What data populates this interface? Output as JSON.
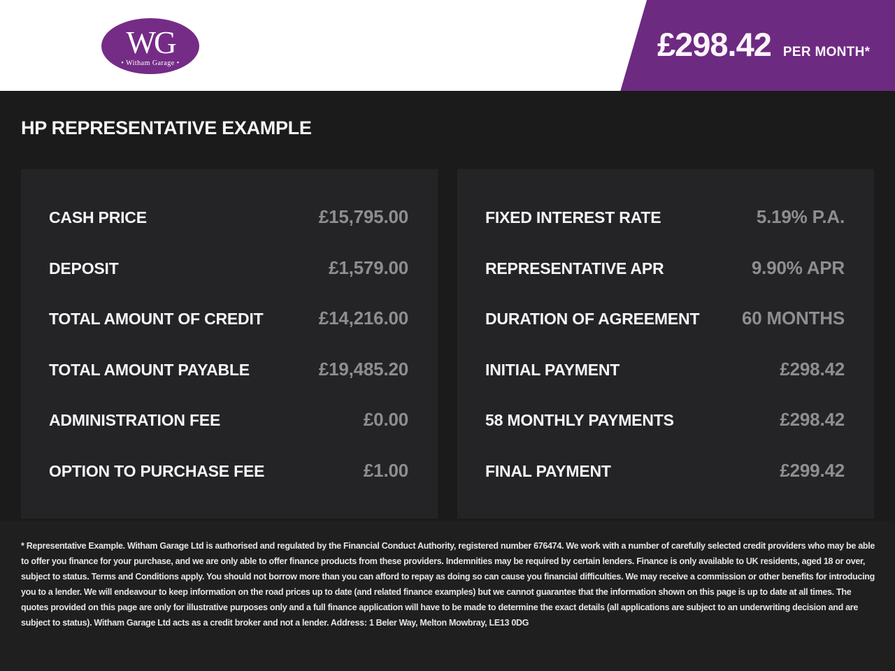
{
  "colors": {
    "brand_purple": "#6d2a81",
    "logo_purple": "#752c86",
    "page_bg": "#1b1b1b",
    "panel_bg": "#242426",
    "footer_bg": "#1f1f1f",
    "label_color": "#f5f5f5",
    "value_color": "#8e8e90"
  },
  "header": {
    "logo": {
      "initials": "WG",
      "name": "• Witham Garage •"
    },
    "price_banner": {
      "amount": "£298.42",
      "period": "PER MONTH*"
    }
  },
  "page_title": "HP REPRESENTATIVE EXAMPLE",
  "finance": {
    "left": {
      "rows": [
        {
          "label": "CASH PRICE",
          "value": "£15,795.00"
        },
        {
          "label": "DEPOSIT",
          "value": "£1,579.00"
        },
        {
          "label": "TOTAL AMOUNT OF CREDIT",
          "value": "£14,216.00"
        },
        {
          "label": "TOTAL AMOUNT PAYABLE",
          "value": "£19,485.20"
        },
        {
          "label": "ADMINISTRATION FEE",
          "value": "£0.00"
        },
        {
          "label": "OPTION TO PURCHASE FEE",
          "value": "£1.00"
        }
      ]
    },
    "right": {
      "rows": [
        {
          "label": "FIXED INTEREST RATE",
          "value": "5.19% P.A."
        },
        {
          "label": "REPRESENTATIVE APR",
          "value": "9.90% APR"
        },
        {
          "label": "DURATION OF AGREEMENT",
          "value": "60 MONTHS"
        },
        {
          "label": "INITIAL PAYMENT",
          "value": "£298.42"
        },
        {
          "label": "58 MONTHLY PAYMENTS",
          "value": "£298.42"
        },
        {
          "label": "FINAL PAYMENT",
          "value": "£299.42"
        }
      ]
    }
  },
  "disclaimer": "* Representative Example. Witham Garage Ltd is authorised and regulated by the Financial Conduct Authority, registered number 676474. We work with a number of carefully selected credit providers who may be able to offer you finance for your purchase, and we are only able to offer finance products from these providers. Indemnities may be required by certain lenders. Finance is only available to UK residents, aged 18 or over, subject to status. Terms and Conditions apply. You should not borrow more than you can afford to repay as doing so can cause you financial difficulties. We may receive a commission or other benefits for introducing you to a lender. We will endeavour to keep information on the road prices up to date (and related finance examples) but we cannot guarantee that the information shown on this page is up to date at all times. The quotes provided on this page are only for illustrative purposes only and a full finance application will have to be made to determine the exact details (all applications are subject to an underwriting decision and are subject to status). Witham Garage Ltd acts as a credit broker and not a lender. Address: 1 Beler Way, Melton Mowbray, LE13 0DG"
}
